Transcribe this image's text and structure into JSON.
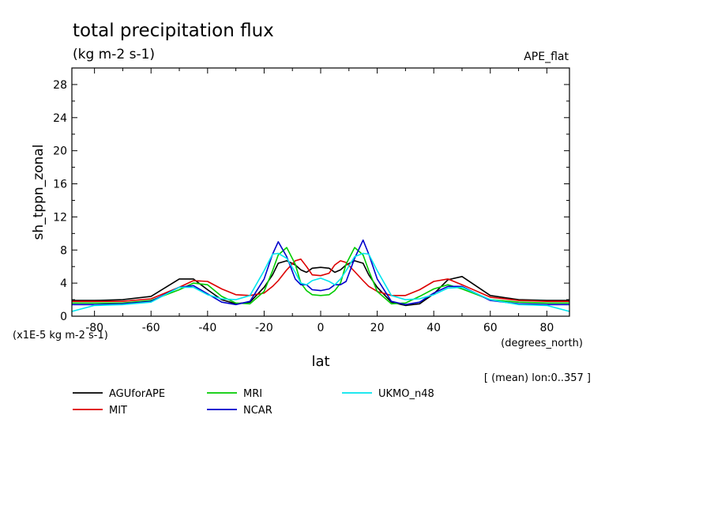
{
  "chart_data": {
    "type": "line",
    "title": "total precipitation flux",
    "subtitle": "(kg m-2 s-1)",
    "experiment": "APE_flat",
    "ylabel": "sh_tppn_zonal",
    "xlabel": "lat",
    "xunit": "(degrees_north)",
    "yscale_note": "(x1E-5 kg m-2 s-1)",
    "footnote": "[ (mean) lon:0..357 ]",
    "xlim": [
      -88,
      88
    ],
    "ylim": [
      0,
      30
    ],
    "xticks": [
      -80,
      -60,
      -40,
      -20,
      0,
      20,
      40,
      60,
      80
    ],
    "yticks": [
      0,
      4,
      8,
      12,
      16,
      20,
      24,
      28
    ],
    "x": [
      -90,
      -80,
      -70,
      -60,
      -50,
      -45,
      -40,
      -35,
      -30,
      -25,
      -20,
      -17,
      -15,
      -12,
      -9,
      -7,
      -5,
      -3,
      0,
      3,
      5,
      7,
      9,
      12,
      15,
      17,
      20,
      25,
      30,
      35,
      40,
      45,
      50,
      60,
      70,
      80,
      90
    ],
    "series": [
      {
        "name": "AGUforAPE",
        "color": "#000000",
        "values": [
          1.9,
          1.9,
          2.0,
          2.4,
          4.5,
          4.5,
          3.2,
          2.0,
          1.5,
          1.7,
          3.5,
          5.0,
          6.4,
          6.7,
          6.2,
          5.6,
          5.3,
          5.8,
          5.9,
          5.8,
          5.3,
          5.6,
          6.2,
          6.7,
          6.4,
          5.0,
          3.5,
          1.7,
          1.3,
          1.5,
          2.7,
          4.4,
          4.8,
          2.5,
          2.0,
          1.9,
          1.9
        ]
      },
      {
        "name": "MIT",
        "color": "#dd0000",
        "values": [
          1.8,
          1.8,
          1.8,
          2.1,
          3.5,
          4.3,
          4.2,
          3.3,
          2.6,
          2.5,
          2.8,
          3.6,
          4.3,
          5.6,
          6.7,
          6.9,
          6.0,
          5.0,
          4.9,
          5.2,
          6.2,
          6.7,
          6.5,
          5.4,
          4.3,
          3.6,
          3.0,
          2.5,
          2.5,
          3.2,
          4.2,
          4.5,
          3.8,
          2.3,
          1.9,
          1.8,
          1.8
        ]
      },
      {
        "name": "MRI",
        "color": "#00cc00",
        "values": [
          1.6,
          1.6,
          1.6,
          1.9,
          3.2,
          4.0,
          3.8,
          2.4,
          1.6,
          1.5,
          3.0,
          5.5,
          7.4,
          8.3,
          6.3,
          4.0,
          3.1,
          2.6,
          2.5,
          2.6,
          3.1,
          4.0,
          6.3,
          8.3,
          7.4,
          5.5,
          3.0,
          1.5,
          1.6,
          2.4,
          3.3,
          3.8,
          3.3,
          2.0,
          1.7,
          1.6,
          1.6
        ]
      },
      {
        "name": "NCAR",
        "color": "#0000cc",
        "values": [
          1.4,
          1.4,
          1.5,
          1.8,
          3.5,
          3.7,
          2.7,
          1.7,
          1.4,
          1.8,
          4.5,
          7.5,
          9.0,
          7.2,
          4.5,
          3.8,
          3.8,
          3.2,
          3.1,
          3.3,
          3.8,
          3.8,
          4.2,
          7.0,
          9.2,
          7.5,
          4.5,
          1.8,
          1.4,
          1.7,
          2.8,
          3.6,
          3.6,
          1.9,
          1.5,
          1.4,
          1.4
        ]
      },
      {
        "name": "UKMO_n48",
        "color": "#00e5ee",
        "values": [
          0.4,
          1.3,
          1.4,
          1.7,
          3.5,
          3.5,
          2.6,
          2.1,
          2.0,
          2.5,
          5.5,
          7.5,
          7.6,
          7.0,
          5.3,
          4.0,
          3.8,
          4.3,
          4.6,
          4.2,
          3.8,
          4.5,
          5.5,
          7.2,
          7.6,
          7.5,
          5.5,
          2.5,
          2.0,
          2.1,
          2.6,
          3.4,
          3.5,
          2.0,
          1.4,
          1.3,
          0.4
        ]
      }
    ],
    "legend_placement": "bottom",
    "grid": false
  }
}
